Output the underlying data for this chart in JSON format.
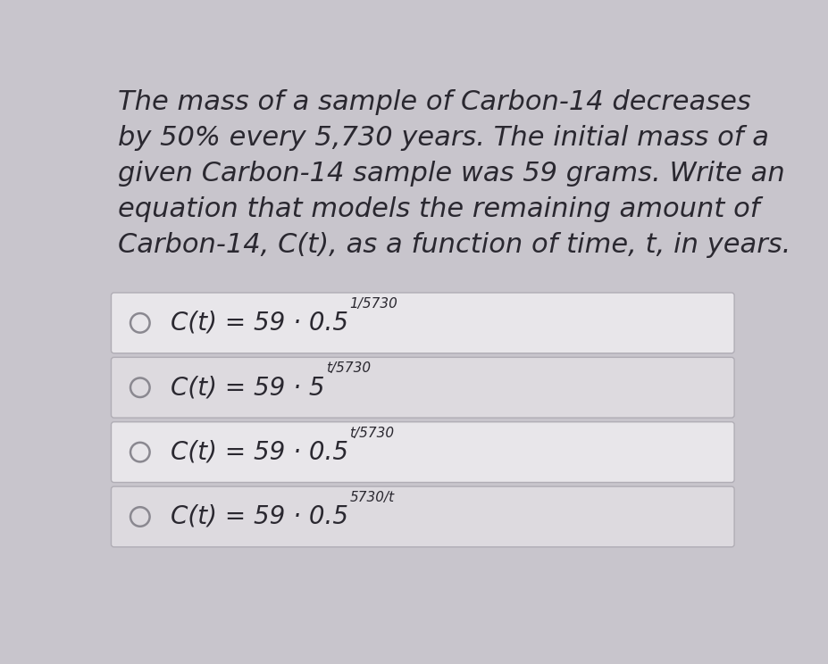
{
  "background_color": "#c8c5cc",
  "question_text_lines": [
    "The mass of a sample of Carbon-14 decreases",
    "by 50% every 5,730 years. The initial mass of a",
    "given Carbon-14 sample was 59 grams. Write an",
    "equation that models the remaining amount of",
    "Carbon-14, C(t), as a function of time, t, in years."
  ],
  "options": [
    {
      "main": "C(t) = 59 · 0.5",
      "superscript": "1/5730",
      "box_color": "#e8e6ea",
      "border_color": "#b0adb5"
    },
    {
      "main": "C(t) = 59 · 5",
      "superscript": "t/5730",
      "box_color": "#dddadf",
      "border_color": "#b0adb5"
    },
    {
      "main": "C(t) = 59 · 0.5",
      "superscript": "t/5730",
      "box_color": "#e8e6ea",
      "border_color": "#b0adb5"
    },
    {
      "main": "C(t) = 59 · 0.5",
      "superscript": "5730/t",
      "box_color": "#dddadf",
      "border_color": "#b0adb5"
    }
  ],
  "radio_color": "#8a8890",
  "text_color": "#2a2830",
  "option_text_color": "#2a2830",
  "question_font_size": 22,
  "option_font_size": 20,
  "superscript_font_size": 11
}
